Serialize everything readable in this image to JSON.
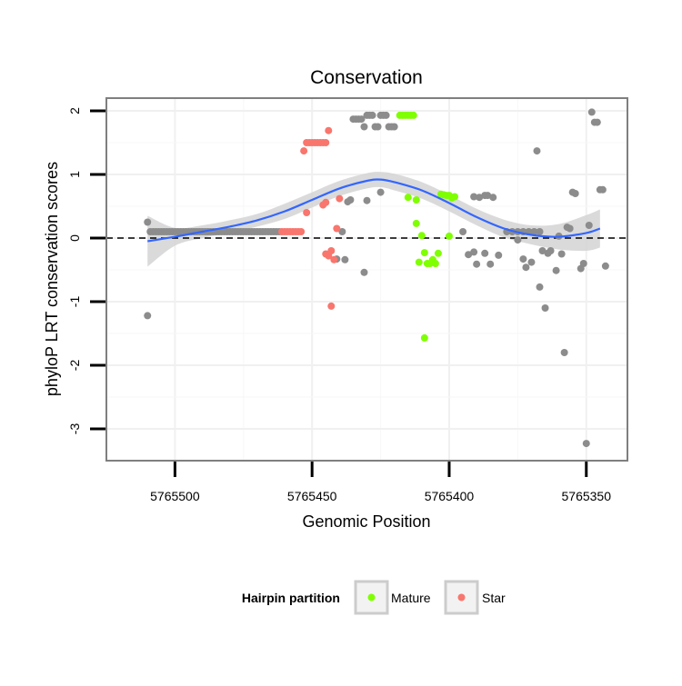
{
  "chart_data": {
    "type": "scatter",
    "title": "Conservation",
    "xlabel": "Genomic Position",
    "ylabel": "phyloP LRT conservation scores",
    "x_reversed": true,
    "xlim": [
      5765525,
      5765335
    ],
    "ylim": [
      -3.5,
      2.2
    ],
    "x_ticks": [
      5765500,
      5765450,
      5765400,
      5765350
    ],
    "x_tick_labels": [
      "5765500",
      "5765450",
      "5765400",
      "5765350"
    ],
    "y_ticks": [
      -3,
      -2,
      -1,
      0,
      1,
      2
    ],
    "y_tick_labels": [
      "-3",
      "-2",
      "-1",
      "0",
      "1",
      "2"
    ],
    "reference_line": {
      "y": 0,
      "style": "dashed"
    },
    "legend": {
      "title": "Hairpin partition",
      "position": "bottom",
      "entries": [
        {
          "label": "Mature",
          "color": "#7fff00"
        },
        {
          "label": "Star",
          "color": "#f8766d"
        }
      ]
    },
    "colors": {
      "other": "#8c8c8c",
      "mature": "#7fff00",
      "star": "#f8766d",
      "smooth": "#3366ff",
      "band": "#d3d3d3"
    },
    "series": [
      {
        "name": "Other",
        "points": [
          [
            5765510,
            0.25
          ],
          [
            5765510,
            -1.22
          ],
          [
            5765509,
            0.1
          ],
          [
            5765508,
            0.1
          ],
          [
            5765507,
            0.1
          ],
          [
            5765506,
            0.1
          ],
          [
            5765505,
            0.1
          ],
          [
            5765504,
            0.1
          ],
          [
            5765503,
            0.1
          ],
          [
            5765502,
            0.1
          ],
          [
            5765501,
            0.1
          ],
          [
            5765500,
            0.1
          ],
          [
            5765499,
            0.1
          ],
          [
            5765498,
            0.1
          ],
          [
            5765497,
            0.1
          ],
          [
            5765496,
            0.1
          ],
          [
            5765495,
            0.1
          ],
          [
            5765494,
            0.1
          ],
          [
            5765493,
            0.1
          ],
          [
            5765492,
            0.1
          ],
          [
            5765491,
            0.1
          ],
          [
            5765490,
            0.1
          ],
          [
            5765489,
            0.1
          ],
          [
            5765488,
            0.1
          ],
          [
            5765487,
            0.1
          ],
          [
            5765486,
            0.1
          ],
          [
            5765485,
            0.1
          ],
          [
            5765484,
            0.1
          ],
          [
            5765483,
            0.1
          ],
          [
            5765482,
            0.1
          ],
          [
            5765481,
            0.1
          ],
          [
            5765480,
            0.1
          ],
          [
            5765479,
            0.1
          ],
          [
            5765478,
            0.1
          ],
          [
            5765477,
            0.1
          ],
          [
            5765476,
            0.1
          ],
          [
            5765475,
            0.1
          ],
          [
            5765474,
            0.1
          ],
          [
            5765473,
            0.1
          ],
          [
            5765472,
            0.1
          ],
          [
            5765471,
            0.1
          ],
          [
            5765470,
            0.1
          ],
          [
            5765469,
            0.1
          ],
          [
            5765468,
            0.1
          ],
          [
            5765467,
            0.1
          ],
          [
            5765466,
            0.1
          ],
          [
            5765465,
            0.1
          ],
          [
            5765464,
            0.1
          ],
          [
            5765463,
            0.1
          ],
          [
            5765462,
            0.1
          ],
          [
            5765439,
            0.1
          ],
          [
            5765437,
            0.57
          ],
          [
            5765436,
            0.6
          ],
          [
            5765435,
            1.87
          ],
          [
            5765434,
            1.87
          ],
          [
            5765433,
            1.87
          ],
          [
            5765432,
            1.87
          ],
          [
            5765431,
            1.75
          ],
          [
            5765430,
            1.93
          ],
          [
            5765429,
            1.93
          ],
          [
            5765428,
            1.93
          ],
          [
            5765427,
            1.75
          ],
          [
            5765426,
            1.75
          ],
          [
            5765425,
            1.93
          ],
          [
            5765424,
            1.93
          ],
          [
            5765423,
            1.93
          ],
          [
            5765422,
            1.75
          ],
          [
            5765421,
            1.75
          ],
          [
            5765420,
            1.75
          ],
          [
            5765438,
            -0.34
          ],
          [
            5765441,
            -0.33
          ],
          [
            5765431,
            -0.54
          ],
          [
            5765430,
            0.59
          ],
          [
            5765425,
            0.72
          ],
          [
            5765391,
            0.65
          ],
          [
            5765389,
            0.64
          ],
          [
            5765387,
            0.67
          ],
          [
            5765386,
            0.67
          ],
          [
            5765384,
            0.64
          ],
          [
            5765395,
            0.1
          ],
          [
            5765393,
            -0.26
          ],
          [
            5765391,
            -0.22
          ],
          [
            5765390,
            -0.41
          ],
          [
            5765387,
            -0.24
          ],
          [
            5765385,
            -0.41
          ],
          [
            5765382,
            -0.27
          ],
          [
            5765379,
            0.1
          ],
          [
            5765377,
            0.1
          ],
          [
            5765375,
            0.1
          ],
          [
            5765373,
            0.1
          ],
          [
            5765371,
            0.1
          ],
          [
            5765369,
            0.1
          ],
          [
            5765367,
            0.1
          ],
          [
            5765375,
            -0.03
          ],
          [
            5765373,
            -0.33
          ],
          [
            5765372,
            -0.46
          ],
          [
            5765370,
            -0.38
          ],
          [
            5765368,
            1.37
          ],
          [
            5765367,
            -0.77
          ],
          [
            5765366,
            -0.2
          ],
          [
            5765365,
            -1.1
          ],
          [
            5765364,
            -0.24
          ],
          [
            5765363,
            -0.2
          ],
          [
            5765361,
            -0.51
          ],
          [
            5765360,
            0.03
          ],
          [
            5765359,
            -0.25
          ],
          [
            5765358,
            -1.8
          ],
          [
            5765357,
            0.17
          ],
          [
            5765356,
            0.15
          ],
          [
            5765355,
            0.72
          ],
          [
            5765354,
            0.7
          ],
          [
            5765352,
            -0.48
          ],
          [
            5765351,
            -0.4
          ],
          [
            5765350,
            -3.23
          ],
          [
            5765349,
            0.2
          ],
          [
            5765348,
            1.98
          ],
          [
            5765347,
            1.82
          ],
          [
            5765346,
            1.82
          ],
          [
            5765345,
            0.76
          ],
          [
            5765344,
            0.76
          ],
          [
            5765343,
            -0.44
          ]
        ]
      },
      {
        "name": "Mature",
        "points": [
          [
            5765418,
            1.93
          ],
          [
            5765417,
            1.93
          ],
          [
            5765416,
            1.93
          ],
          [
            5765415,
            1.93
          ],
          [
            5765414,
            1.93
          ],
          [
            5765413,
            1.93
          ],
          [
            5765415,
            0.64
          ],
          [
            5765412,
            0.6
          ],
          [
            5765412,
            0.23
          ],
          [
            5765410,
            0.04
          ],
          [
            5765411,
            -0.38
          ],
          [
            5765409,
            -0.23
          ],
          [
            5765408,
            -0.4
          ],
          [
            5765407,
            -0.4
          ],
          [
            5765406,
            -0.34
          ],
          [
            5765405,
            -0.4
          ],
          [
            5765404,
            -0.24
          ],
          [
            5765409,
            -1.57
          ],
          [
            5765403,
            0.69
          ],
          [
            5765402,
            0.68
          ],
          [
            5765401,
            0.67
          ],
          [
            5765400,
            0.67
          ],
          [
            5765399,
            0.63
          ],
          [
            5765400,
            0.03
          ],
          [
            5765398,
            0.65
          ]
        ]
      },
      {
        "name": "Star",
        "points": [
          [
            5765454,
            0.1
          ],
          [
            5765455,
            0.1
          ],
          [
            5765456,
            0.1
          ],
          [
            5765457,
            0.1
          ],
          [
            5765458,
            0.1
          ],
          [
            5765459,
            0.1
          ],
          [
            5765460,
            0.1
          ],
          [
            5765461,
            0.1
          ],
          [
            5765453,
            1.37
          ],
          [
            5765452,
            1.5
          ],
          [
            5765451,
            1.5
          ],
          [
            5765450,
            1.5
          ],
          [
            5765449,
            1.5
          ],
          [
            5765448,
            1.5
          ],
          [
            5765447,
            1.5
          ],
          [
            5765446,
            1.5
          ],
          [
            5765445,
            1.5
          ],
          [
            5765444,
            1.69
          ],
          [
            5765452,
            0.4
          ],
          [
            5765446,
            0.52
          ],
          [
            5765445,
            0.56
          ],
          [
            5765440,
            0.62
          ],
          [
            5765441,
            0.15
          ],
          [
            5765445,
            -0.25
          ],
          [
            5765444,
            -0.28
          ],
          [
            5765443,
            -0.2
          ],
          [
            5765442,
            -0.34
          ],
          [
            5765443,
            -1.07
          ]
        ]
      }
    ],
    "smooth": {
      "method": "loess",
      "x": [
        5765510,
        5765500,
        5765490,
        5765480,
        5765470,
        5765460,
        5765450,
        5765440,
        5765430,
        5765425,
        5765420,
        5765410,
        5765400,
        5765390,
        5765380,
        5765370,
        5765360,
        5765350,
        5765345
      ],
      "y": [
        -0.05,
        0.02,
        0.1,
        0.18,
        0.28,
        0.42,
        0.6,
        0.78,
        0.9,
        0.92,
        0.88,
        0.75,
        0.55,
        0.33,
        0.15,
        0.05,
        0.02,
        0.08,
        0.15
      ],
      "lower": [
        -0.45,
        -0.12,
        0.0,
        0.08,
        0.18,
        0.3,
        0.48,
        0.66,
        0.78,
        0.8,
        0.75,
        0.62,
        0.42,
        0.2,
        0.01,
        -0.1,
        -0.18,
        -0.2,
        -0.15
      ],
      "upper": [
        0.35,
        0.16,
        0.2,
        0.28,
        0.38,
        0.54,
        0.72,
        0.9,
        1.02,
        1.04,
        1.01,
        0.88,
        0.68,
        0.46,
        0.29,
        0.2,
        0.22,
        0.36,
        0.45
      ]
    }
  }
}
